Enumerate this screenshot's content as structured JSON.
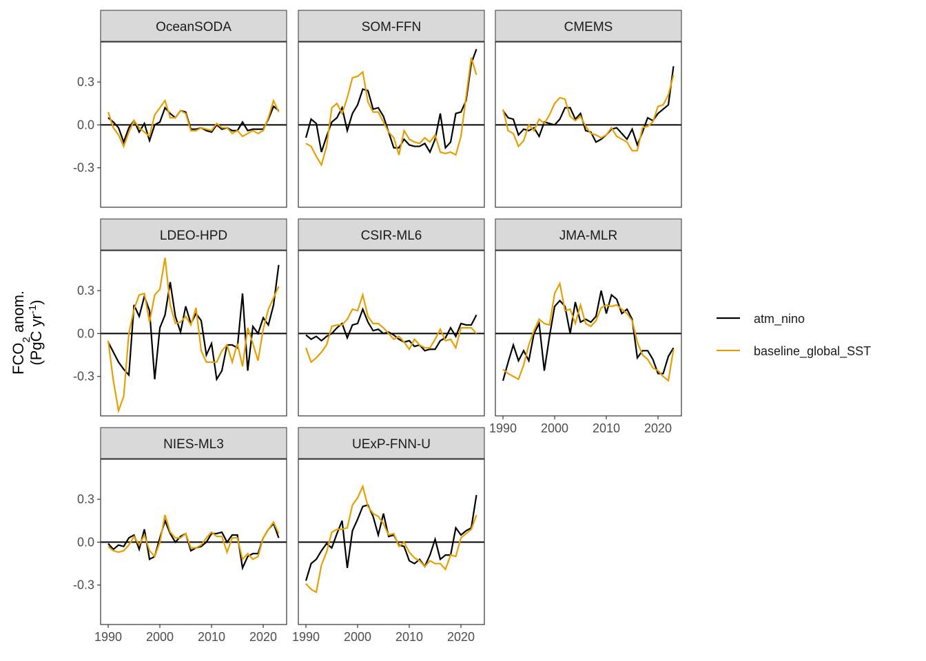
{
  "chart_data": {
    "type": "line",
    "ylabel": {
      "line1": [
        "FCO",
        "2",
        " anom."
      ],
      "line2": [
        "(PgC yr",
        "-1",
        ")"
      ]
    },
    "x": [
      1990,
      1991,
      1992,
      1993,
      1994,
      1995,
      1996,
      1997,
      1998,
      1999,
      2000,
      2001,
      2002,
      2003,
      2004,
      2005,
      2006,
      2007,
      2008,
      2009,
      2010,
      2011,
      2012,
      2013,
      2014,
      2015,
      2016,
      2017,
      2018,
      2019,
      2020,
      2021,
      2022,
      2023
    ],
    "xlim": [
      1988.53,
      2024.53
    ],
    "xticks": [
      1990,
      2000,
      2010,
      2020
    ],
    "ylim": [
      -0.576,
      0.58
    ],
    "yticks": [
      -0.3,
      {
        "value": 0,
        "label": "0.0"
      },
      0.3
    ],
    "legend": [
      {
        "name": "atm_nino",
        "color": "#000000"
      },
      {
        "name": "baseline_global_SST",
        "color": "#E69F00"
      }
    ],
    "panels": [
      {
        "title": "OceanSODA",
        "series": [
          {
            "values": [
              0.05,
              0.02,
              -0.02,
              -0.12,
              -0.02,
              0.03,
              -0.05,
              0.01,
              -0.11,
              0.0,
              0.02,
              0.12,
              0.08,
              0.05,
              0.1,
              0.09,
              -0.03,
              -0.03,
              -0.02,
              -0.04,
              -0.05,
              0.0,
              -0.03,
              -0.02,
              -0.04,
              -0.04,
              0.02,
              -0.04,
              -0.03,
              -0.03,
              -0.03,
              0.04,
              0.13,
              0.1
            ]
          },
          {
            "values": [
              0.09,
              -0.02,
              -0.07,
              -0.15,
              -0.05,
              0.03,
              -0.02,
              -0.05,
              -0.08,
              0.07,
              0.12,
              0.17,
              0.05,
              0.05,
              0.1,
              0.08,
              -0.04,
              -0.04,
              -0.02,
              -0.03,
              -0.04,
              0.01,
              -0.02,
              -0.02,
              -0.06,
              -0.04,
              -0.08,
              -0.06,
              -0.04,
              -0.06,
              -0.04,
              0.05,
              0.17,
              0.09
            ]
          }
        ]
      },
      {
        "title": "SOM-FFN",
        "series": [
          {
            "values": [
              -0.09,
              0.04,
              0.01,
              -0.19,
              -0.08,
              0.02,
              0.05,
              0.12,
              -0.04,
              0.08,
              0.14,
              0.25,
              0.24,
              0.11,
              0.12,
              0.06,
              -0.05,
              -0.16,
              -0.16,
              -0.1,
              -0.14,
              -0.15,
              -0.15,
              -0.13,
              -0.19,
              -0.1,
              0.08,
              -0.16,
              -0.12,
              0.08,
              0.09,
              0.17,
              0.43,
              0.53
            ]
          },
          {
            "values": [
              -0.13,
              -0.15,
              -0.22,
              -0.28,
              -0.15,
              0.12,
              0.15,
              0.08,
              0.19,
              0.33,
              0.34,
              0.37,
              0.16,
              0.09,
              0.09,
              0.02,
              -0.05,
              -0.09,
              -0.21,
              -0.04,
              -0.1,
              -0.12,
              -0.13,
              -0.09,
              -0.12,
              -0.07,
              -0.19,
              -0.2,
              -0.19,
              -0.21,
              -0.08,
              0.2,
              0.47,
              0.35
            ]
          }
        ]
      },
      {
        "title": "CMEMS",
        "series": [
          {
            "values": [
              0.1,
              0.05,
              0.04,
              -0.07,
              -0.03,
              -0.04,
              -0.02,
              -0.08,
              0.02,
              0.01,
              0.0,
              0.04,
              0.12,
              0.12,
              0.04,
              0.08,
              -0.04,
              -0.05,
              -0.12,
              -0.1,
              -0.07,
              -0.03,
              -0.02,
              -0.06,
              -0.1,
              -0.03,
              -0.14,
              -0.05,
              0.05,
              0.03,
              0.08,
              0.11,
              0.14,
              0.41
            ]
          },
          {
            "values": [
              0.11,
              -0.04,
              -0.06,
              -0.15,
              -0.11,
              0.0,
              -0.04,
              0.04,
              0.01,
              0.07,
              0.15,
              0.19,
              0.18,
              0.06,
              0.03,
              0.06,
              -0.01,
              -0.06,
              -0.07,
              -0.09,
              -0.07,
              -0.02,
              -0.08,
              -0.1,
              -0.12,
              -0.18,
              -0.18,
              -0.02,
              -0.01,
              0.02,
              0.13,
              0.14,
              0.21,
              0.35
            ]
          }
        ]
      },
      {
        "title": "LDEO-HPD",
        "series": [
          {
            "values": [
              -0.06,
              -0.13,
              -0.2,
              -0.25,
              -0.29,
              0.2,
              0.12,
              0.26,
              0.16,
              -0.32,
              0.04,
              0.13,
              0.36,
              0.12,
              0.01,
              0.19,
              0.07,
              0.14,
              0.09,
              -0.15,
              -0.07,
              -0.32,
              -0.26,
              -0.08,
              -0.08,
              -0.1,
              0.28,
              -0.26,
              0.05,
              0.0,
              0.11,
              0.06,
              0.2,
              0.48
            ]
          },
          {
            "values": [
              -0.05,
              -0.33,
              -0.54,
              -0.44,
              0.0,
              0.17,
              0.27,
              0.28,
              0.08,
              0.27,
              0.31,
              0.53,
              0.2,
              0.07,
              0.08,
              0.12,
              0.06,
              0.18,
              -0.12,
              -0.2,
              -0.2,
              -0.2,
              -0.12,
              -0.08,
              -0.2,
              -0.07,
              -0.23,
              0.04,
              -0.07,
              -0.19,
              0.03,
              0.17,
              0.25,
              0.33
            ]
          }
        ]
      },
      {
        "title": "CSIR-ML6",
        "series": [
          {
            "values": [
              -0.01,
              -0.04,
              -0.02,
              -0.05,
              -0.02,
              0.0,
              0.04,
              0.07,
              -0.03,
              0.06,
              0.07,
              0.17,
              0.08,
              0.02,
              0.03,
              0.0,
              0.01,
              -0.01,
              -0.04,
              -0.06,
              -0.05,
              -0.09,
              -0.08,
              -0.12,
              -0.11,
              -0.11,
              -0.05,
              -0.03,
              0.04,
              -0.02,
              0.07,
              0.06,
              0.06,
              0.13
            ]
          },
          {
            "values": [
              -0.1,
              -0.2,
              -0.17,
              -0.13,
              -0.08,
              0.05,
              0.06,
              0.06,
              0.1,
              0.17,
              0.16,
              0.27,
              0.12,
              0.07,
              0.07,
              0.04,
              0.0,
              -0.04,
              -0.02,
              -0.06,
              -0.11,
              -0.04,
              -0.08,
              -0.1,
              -0.1,
              -0.04,
              0.03,
              -0.05,
              -0.04,
              -0.1,
              0.04,
              0.04,
              0.04,
              0.0
            ]
          }
        ]
      },
      {
        "title": "JMA-MLR",
        "series": [
          {
            "values": [
              -0.33,
              -0.2,
              -0.08,
              -0.19,
              -0.12,
              -0.19,
              0.0,
              0.07,
              -0.26,
              -0.02,
              0.19,
              0.23,
              0.19,
              0.0,
              0.22,
              0.08,
              0.1,
              0.08,
              0.12,
              0.3,
              0.14,
              0.27,
              0.24,
              0.14,
              0.17,
              0.1,
              -0.17,
              -0.12,
              -0.12,
              -0.18,
              -0.28,
              -0.28,
              -0.16,
              -0.1
            ]
          },
          {
            "values": [
              -0.25,
              -0.28,
              -0.3,
              -0.32,
              -0.22,
              -0.08,
              0.02,
              0.1,
              0.07,
              0.06,
              0.28,
              0.35,
              0.16,
              0.17,
              0.07,
              0.2,
              0.07,
              0.05,
              0.09,
              0.18,
              0.2,
              0.19,
              0.2,
              0.17,
              0.14,
              0.09,
              -0.06,
              -0.15,
              -0.18,
              -0.24,
              -0.26,
              -0.3,
              -0.33,
              -0.11
            ]
          }
        ]
      },
      {
        "title": "NIES-ML3",
        "series": [
          {
            "values": [
              -0.01,
              -0.05,
              -0.02,
              -0.03,
              0.03,
              0.05,
              -0.05,
              0.09,
              -0.12,
              -0.1,
              0.03,
              0.15,
              0.06,
              0.0,
              0.04,
              0.06,
              -0.06,
              -0.04,
              -0.03,
              0.0,
              0.06,
              0.06,
              0.07,
              0.0,
              0.05,
              0.05,
              -0.18,
              -0.1,
              -0.08,
              -0.08,
              0.03,
              0.09,
              0.13,
              0.03
            ]
          },
          {
            "values": [
              -0.03,
              -0.06,
              -0.07,
              -0.06,
              -0.02,
              0.04,
              -0.02,
              0.05,
              -0.06,
              -0.1,
              0.0,
              0.19,
              0.07,
              0.03,
              0.03,
              0.06,
              -0.04,
              -0.04,
              -0.02,
              0.03,
              0.07,
              0.04,
              0.04,
              -0.07,
              0.03,
              0.03,
              -0.12,
              -0.08,
              -0.12,
              -0.1,
              0.03,
              0.09,
              0.14,
              0.06
            ]
          }
        ]
      },
      {
        "title": "UExP-FNN-U",
        "series": [
          {
            "values": [
              -0.27,
              -0.15,
              -0.12,
              -0.06,
              -0.01,
              -0.04,
              0.06,
              0.15,
              -0.18,
              0.08,
              0.16,
              0.25,
              0.26,
              0.18,
              0.05,
              0.2,
              0.04,
              0.05,
              -0.02,
              -0.03,
              -0.13,
              -0.15,
              -0.12,
              -0.17,
              -0.09,
              0.02,
              -0.12,
              -0.09,
              -0.09,
              0.1,
              0.05,
              0.08,
              0.1,
              0.33
            ]
          },
          {
            "values": [
              -0.29,
              -0.33,
              -0.35,
              -0.16,
              -0.07,
              0.07,
              0.09,
              0.09,
              0.1,
              0.26,
              0.31,
              0.39,
              0.25,
              0.2,
              0.18,
              0.13,
              0.05,
              0.06,
              -0.03,
              0.0,
              -0.07,
              -0.11,
              -0.13,
              -0.17,
              -0.13,
              -0.15,
              -0.15,
              -0.19,
              -0.09,
              -0.1,
              0.03,
              0.06,
              0.09,
              0.19
            ]
          }
        ]
      }
    ]
  }
}
